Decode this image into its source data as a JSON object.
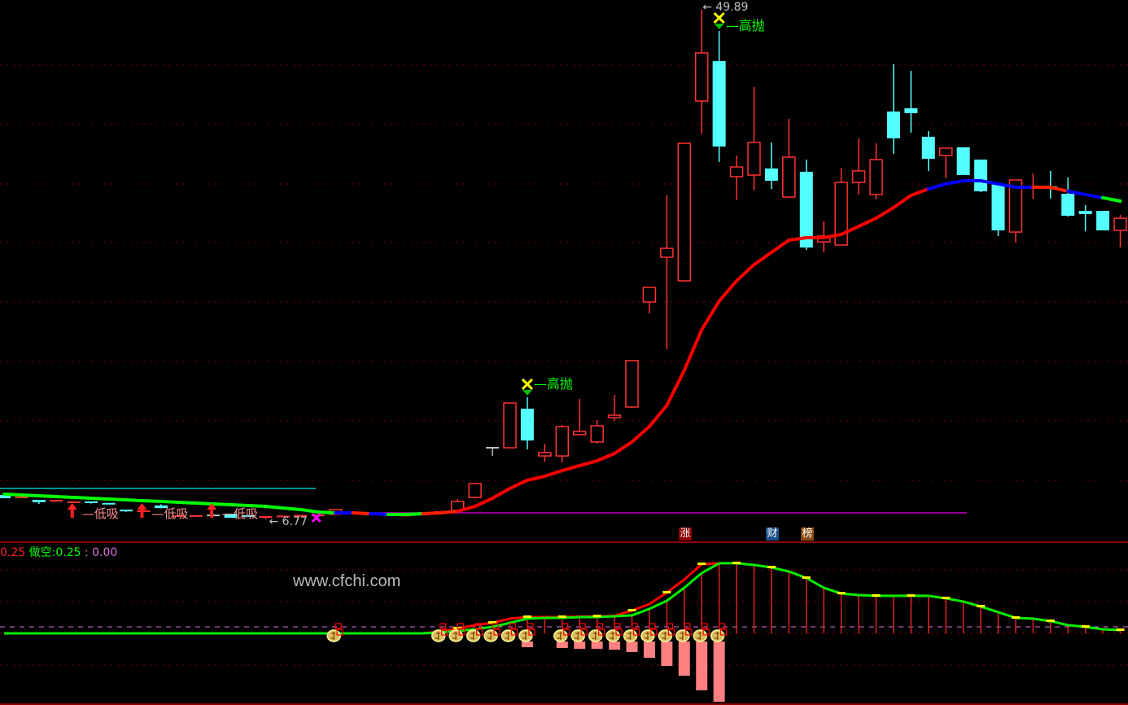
{
  "chart_data": {
    "type": "candlestick",
    "price_label_high": "49.89",
    "price_label_low": "6.77",
    "colors": {
      "up": "#ff3232",
      "down": "#54ffff",
      "doji": "#c0c0c0",
      "grid": "#800000",
      "background": "#000000"
    },
    "candles": [
      [
        8.84,
        8.9,
        8.56,
        8.56
      ],
      [
        8.63,
        8.63,
        8.63,
        8.63
      ],
      [
        8.42,
        8.42,
        8.08,
        8.22
      ],
      [
        8.35,
        8.35,
        8.35,
        8.35
      ],
      [
        8.2,
        8.25,
        8.2,
        8.22
      ],
      [
        8.3,
        8.3,
        8.1,
        8.15
      ],
      [
        8.1,
        8.1,
        8.05,
        8.08
      ],
      [
        7.6,
        7.6,
        7.4,
        7.45
      ],
      [
        7.45,
        7.5,
        7.45,
        7.46
      ],
      [
        7.95,
        8.05,
        7.7,
        7.73
      ],
      [
        7.04,
        7.08,
        7.04,
        7.05
      ],
      [
        7.04,
        7.05,
        7.04,
        7.05
      ],
      [
        7.11,
        7.2,
        7.05,
        7.11
      ],
      [
        7.25,
        7.25,
        6.9,
        6.91
      ],
      [
        7.05,
        7.05,
        7.0,
        7.0
      ],
      [
        6.95,
        7.0,
        6.77,
        6.98
      ],
      [
        7.0,
        7.05,
        6.95,
        7.02
      ],
      [
        7.05,
        7.1,
        7.0,
        7.08
      ],
      [
        7.1,
        7.15,
        7.05,
        7.11
      ],
      [
        7.2,
        7.6,
        7.2,
        7.6
      ],
      [
        7.3,
        7.35,
        7.25,
        7.28
      ],
      [
        7.2,
        7.25,
        7.15,
        7.18
      ],
      [
        7.18,
        7.2,
        7.1,
        7.12
      ],
      [
        7.05,
        7.12,
        7.0,
        7.1
      ],
      [
        7.15,
        7.2,
        7.1,
        7.18
      ],
      [
        7.3,
        7.45,
        7.25,
        7.4
      ],
      [
        7.53,
        8.49,
        7.53,
        8.29
      ],
      [
        8.63,
        9.8,
        8.56,
        9.8
      ],
      [
        12.83,
        12.83,
        12.14,
        12.83
      ],
      [
        12.83,
        16.62,
        12.83,
        16.62
      ],
      [
        16.14,
        17.11,
        12.7,
        13.45
      ],
      [
        12.14,
        13.18,
        11.66,
        12.42
      ],
      [
        12.14,
        14.76,
        11.59,
        14.62
      ],
      [
        13.94,
        16.97,
        13.87,
        14.21
      ],
      [
        13.32,
        15.18,
        13.18,
        14.69
      ],
      [
        15.38,
        17.31,
        15.11,
        15.59
      ],
      [
        16.28,
        20.21,
        16.21,
        20.21
      ],
      [
        25.17,
        26.41,
        24.2,
        26.41
      ],
      [
        28.96,
        34.19,
        21.17,
        29.71
      ],
      [
        26.96,
        38.6,
        26.96,
        38.6
      ],
      [
        42.18,
        49.89,
        39.43,
        46.25
      ],
      [
        45.56,
        48.11,
        37.02,
        38.33
      ],
      [
        35.78,
        37.57,
        33.78,
        36.6
      ],
      [
        35.91,
        43.36,
        34.61,
        38.67
      ],
      [
        36.47,
        38.67,
        34.74,
        35.43
      ],
      [
        34.05,
        40.67,
        34.05,
        37.43
      ],
      [
        36.19,
        37.22,
        29.58,
        29.78
      ],
      [
        30.26,
        31.99,
        29.37,
        30.75
      ],
      [
        29.99,
        36.53,
        29.99,
        35.29
      ],
      [
        35.29,
        39.02,
        34.26,
        36.26
      ],
      [
        34.26,
        38.6,
        33.85,
        37.22
      ],
      [
        41.29,
        45.29,
        37.71,
        39.02
      ],
      [
        41.56,
        44.73,
        39.5,
        41.15
      ],
      [
        39.15,
        39.64,
        36.26,
        37.29
      ],
      [
        37.57,
        38.19,
        35.64,
        38.19
      ],
      [
        38.26,
        38.26,
        35.91,
        35.91
      ],
      [
        37.22,
        37.22,
        34.47,
        34.54
      ],
      [
        35.16,
        35.16,
        30.75,
        31.23
      ],
      [
        31.09,
        35.5,
        30.2,
        35.5
      ],
      [
        34.88,
        36.05,
        33.92,
        34.95
      ],
      [
        34.9,
        36.26,
        33.92,
        34.88
      ],
      [
        34.33,
        35.71,
        32.4,
        32.47
      ],
      [
        32.88,
        33.37,
        31.16,
        32.61
      ],
      [
        32.88,
        32.88,
        31.23,
        31.23
      ],
      [
        31.23,
        32.54,
        29.78,
        32.26
      ]
    ],
    "ma": [
      8.91,
      8.84,
      8.77,
      8.7,
      8.63,
      8.56,
      8.49,
      8.42,
      8.35,
      8.29,
      8.22,
      8.15,
      8.08,
      8.01,
      7.94,
      7.87,
      7.73,
      7.6,
      7.39,
      7.32,
      7.32,
      7.25,
      7.18,
      7.18,
      7.25,
      7.32,
      7.46,
      7.87,
      8.56,
      9.39,
      10.08,
      10.42,
      10.9,
      11.32,
      11.73,
      12.35,
      13.32,
      14.63,
      16.42,
      19.38,
      22.82,
      25.24,
      26.96,
      28.33,
      29.37,
      30.4,
      30.61,
      30.61,
      30.89,
      31.57,
      32.26,
      33.16,
      34.19,
      34.74,
      35.16,
      35.43,
      35.43,
      35.16,
      34.88,
      34.88,
      34.88,
      34.54,
      34.26,
      33.99,
      33.71
    ],
    "ma_colors": [
      "#00ff00",
      "#00ff00",
      "#00ff00",
      "#00ff00",
      "#00ff00",
      "#00ff00",
      "#00ff00",
      "#00ff00",
      "#00ff00",
      "#00ff00",
      "#00ff00",
      "#00ff00",
      "#00ff00",
      "#00ff00",
      "#00ff00",
      "#00ff00",
      "#00ff00",
      "#00ff00",
      "#00ff00",
      "#0000ff",
      "#ff2000",
      "#0000ff",
      "#00ff00",
      "#00ff00",
      "#ff2000",
      "#ff2000",
      "#ff0000",
      "#ff0000",
      "#ff0000",
      "#ff0000",
      "#ff0000",
      "#ff0000",
      "#ff0000",
      "#ff0000",
      "#ff0000",
      "#ff0000",
      "#ff0000",
      "#ff0000",
      "#ff0000",
      "#ff0000",
      "#ff0000",
      "#ff0000",
      "#ff0000",
      "#ff0000",
      "#ff0000",
      "#ff0000",
      "#ff0000",
      "#ff0000",
      "#ff0000",
      "#ff0000",
      "#ff0000",
      "#ff0000",
      "#ff0000",
      "#0000ff",
      "#0000ff",
      "#0000ff",
      "#0000ff",
      "#0000ff",
      "#0000ff",
      "#ff2000",
      "#ff2000",
      "#0000ff",
      "#0000ff",
      "#00ff00",
      "#00ff00"
    ],
    "support_line": {
      "value": 9.39,
      "color": "#00c0c0"
    },
    "base_line": {
      "value": 7.32,
      "color": "#c000c0"
    },
    "signals": {
      "low_buy": {
        "label": "低吸",
        "indices": [
          4,
          8,
          12
        ]
      },
      "high_sell": {
        "label": "高抛",
        "indices": [
          30,
          41
        ]
      },
      "cross_index": 18
    },
    "indicator": {
      "header_value": "0.25",
      "short_label": "做空:",
      "short_value": "0.25",
      "sep": ":",
      "third_value": "0.00",
      "green_line": [
        0,
        0,
        0,
        0,
        0,
        0,
        0,
        0,
        0,
        0,
        0,
        0,
        0,
        0,
        0,
        0,
        0,
        0,
        0,
        0,
        0,
        0,
        0,
        0,
        0,
        0.06,
        0.19,
        0.31,
        0.5,
        0.81,
        1.13,
        1.19,
        1.19,
        1.25,
        1.25,
        1.31,
        1.38,
        1.88,
        2.5,
        3.5,
        4.63,
        5.38,
        5.38,
        5.25,
        5.06,
        4.75,
        4.25,
        3.5,
        3.06,
        2.94,
        2.88,
        2.88,
        2.88,
        2.88,
        2.69,
        2.44,
        2.06,
        1.63,
        1.19,
        1.13,
        0.94,
        0.63,
        0.5,
        0.31,
        0.25
      ],
      "red_line": [
        0,
        0,
        0,
        0,
        0,
        0,
        0,
        0,
        0,
        0,
        0,
        0,
        0,
        0,
        0,
        0,
        0,
        0,
        0,
        0,
        0,
        0,
        0,
        0,
        0,
        0.13,
        0.38,
        0.63,
        0.81,
        1.13,
        1.25,
        1.25,
        1.25,
        1.3,
        1.3,
        1.35,
        1.75,
        2.25,
        3.13,
        4.13,
        5.31,
        5.38,
        5.38,
        5.25,
        5.06,
        4.75,
        4.25,
        3.5,
        3.06,
        2.94,
        2.88,
        2.88,
        2.88,
        2.88,
        2.69,
        2.44,
        2.06,
        1.63,
        1.19,
        1.13,
        0.94,
        0.63,
        0.5,
        0.31,
        0.25
      ],
      "bars": {
        "30": 0.44,
        "32": 0.5,
        "33": 0.56,
        "34": 0.56,
        "35": 0.63,
        "36": 0.81,
        "37": 1.25,
        "38": 1.88,
        "39": 2.63,
        "40": 3.75,
        "41": 4.63
      },
      "money_bag_indices": [
        19,
        25,
        26,
        27,
        28,
        29,
        30,
        32,
        33,
        34,
        35,
        36,
        37,
        38,
        39,
        40,
        41
      ]
    }
  },
  "badges": [
    {
      "text": "涨",
      "color": "#8b0000"
    },
    {
      "text": "财",
      "color": "#1a4f8a"
    },
    {
      "text": "榜",
      "color": "#8a4a10"
    }
  ],
  "watermark": "www.cfchi.com"
}
